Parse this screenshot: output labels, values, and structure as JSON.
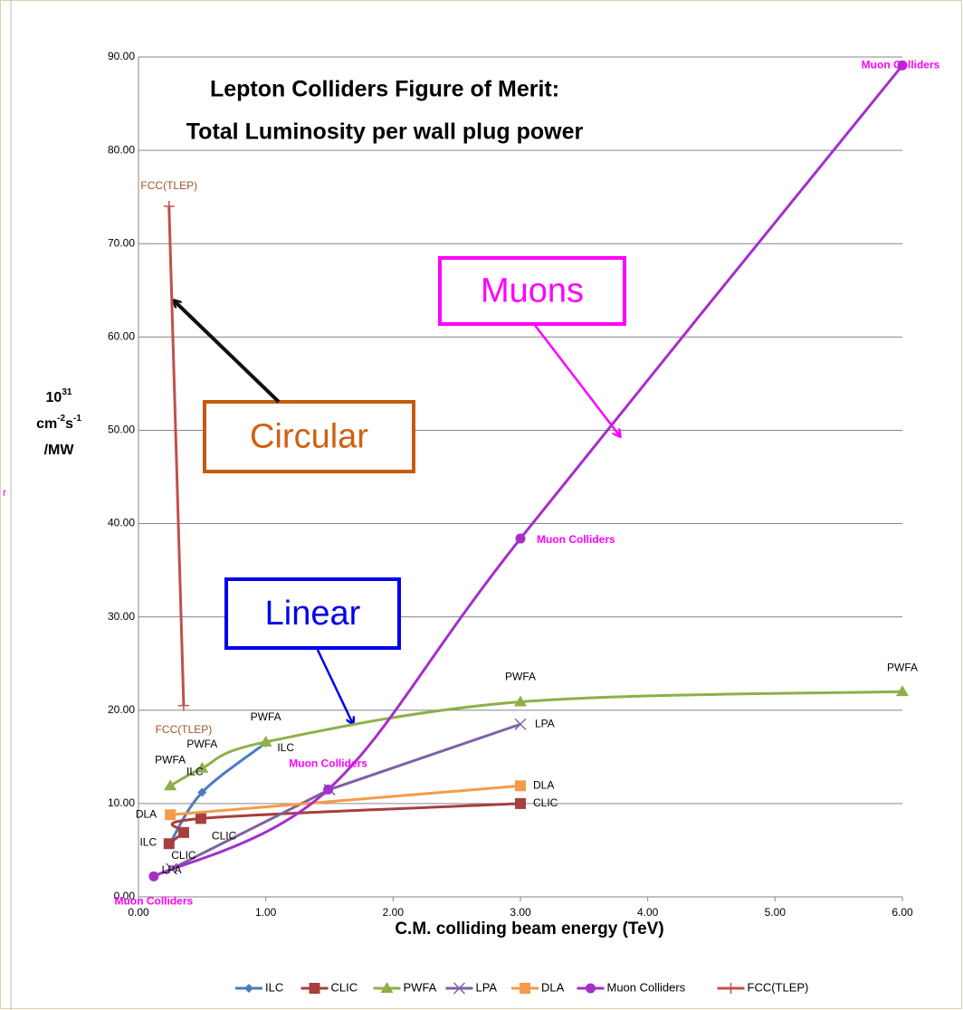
{
  "chart_data": {
    "type": "line",
    "title": [
      "Lepton Colliders Figure of Merit:",
      "Total Luminosity per wall plug power"
    ],
    "xlabel": "C.M. colliding beam energy (TeV)",
    "ylabel": [
      [
        "10",
        "31"
      ],
      [
        "cm",
        "-2",
        "s",
        "-1"
      ],
      [
        "/MW"
      ]
    ],
    "side_text": "r",
    "annotations": [
      "Circular",
      "Muons",
      "Linear"
    ],
    "xlim": [
      0,
      6
    ],
    "ylim": [
      0,
      90
    ],
    "xticks": [
      {
        "value": 0,
        "label": "0.00"
      },
      {
        "value": 1,
        "label": "1.00"
      },
      {
        "value": 2,
        "label": "2.00"
      },
      {
        "value": 3,
        "label": "3.00"
      },
      {
        "value": 4,
        "label": "4.00"
      },
      {
        "value": 5,
        "label": "5.00"
      },
      {
        "value": 6,
        "label": "6.00"
      }
    ],
    "yticks": [
      {
        "value": 0,
        "label": "0.00"
      },
      {
        "value": 10,
        "label": "10.00"
      },
      {
        "value": 20,
        "label": "20.00"
      },
      {
        "value": 30,
        "label": "30.00"
      },
      {
        "value": 40,
        "label": "40.00"
      },
      {
        "value": 50,
        "label": "50.00"
      },
      {
        "value": 60,
        "label": "60.00"
      },
      {
        "value": 70,
        "label": "70.00"
      },
      {
        "value": 80,
        "label": "80.00"
      },
      {
        "value": 90,
        "label": "90.00"
      }
    ],
    "grid": true,
    "legend": "bottom",
    "series": [
      {
        "name": "ILC",
        "color": "#4a7ebb",
        "marker": "diamond",
        "smooth": true,
        "x": [
          0.25,
          0.5,
          1.0
        ],
        "values": [
          5.8,
          11.2,
          16.5
        ],
        "point_labels": [
          "ILC",
          "ILC",
          "ILC"
        ]
      },
      {
        "name": "CLIC",
        "color": "#a5403e",
        "marker": "square",
        "smooth": true,
        "x": [
          0.24,
          0.355,
          0.49,
          3.0
        ],
        "values": [
          5.7,
          6.9,
          8.4,
          10.0
        ],
        "point_labels": [
          null,
          "CLIC",
          "CLIC",
          "CLIC"
        ]
      },
      {
        "name": "PWFA",
        "color": "#8db04a",
        "marker": "triangle",
        "smooth": true,
        "x": [
          0.25,
          0.5,
          1.0,
          3.0,
          6.0
        ],
        "values": [
          11.9,
          13.8,
          16.6,
          20.9,
          22.0
        ],
        "point_labels": [
          "PWFA",
          "PWFA",
          "PWFA",
          "PWFA",
          "PWFA"
        ]
      },
      {
        "name": "LPA",
        "color": "#7e62a1",
        "marker": "x",
        "smooth": false,
        "x": [
          0.26,
          1.5,
          3.0
        ],
        "values": [
          3.0,
          11.5,
          18.5
        ],
        "point_labels": [
          "LPA",
          null,
          "LPA"
        ]
      },
      {
        "name": "DLA",
        "color": "#f59a4a",
        "marker": "square",
        "smooth": false,
        "x": [
          0.25,
          3.0
        ],
        "values": [
          8.8,
          11.9
        ],
        "point_labels": [
          "DLA",
          "DLA"
        ]
      },
      {
        "name": "Muon Colliders",
        "color": "#a42fc9",
        "marker": "circle",
        "smooth": true,
        "x": [
          0.12,
          1.49,
          3.0,
          6.0
        ],
        "values": [
          2.2,
          11.5,
          38.4,
          89.1
        ],
        "point_labels": [
          "Muon Colliders",
          "Muon Colliders",
          "Muon Colliders",
          "Muon Colliders"
        ]
      },
      {
        "name": "FCC(TLEP)",
        "color": "#c0504d",
        "marker": "plus",
        "smooth": false,
        "x": [
          0.24,
          0.355
        ],
        "values": [
          74.0,
          20.5
        ],
        "point_labels": [
          "FCC(TLEP)",
          "FCC(TLEP)"
        ]
      }
    ]
  }
}
